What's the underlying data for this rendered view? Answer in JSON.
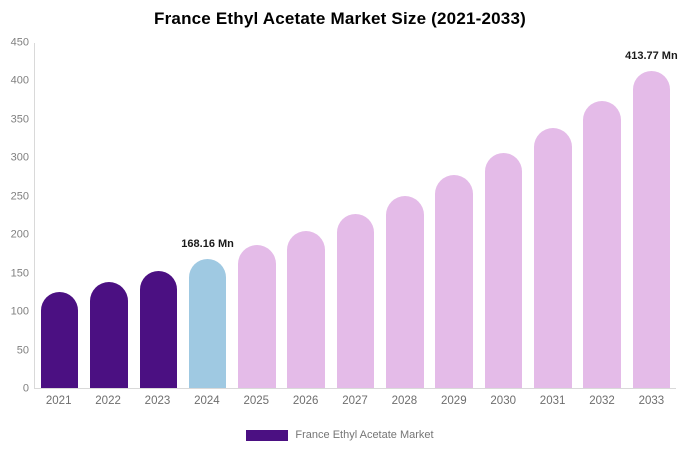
{
  "chart_data": {
    "type": "bar",
    "title": "France Ethyl Acetate Market Size (2021-2033)",
    "categories": [
      "2021",
      "2022",
      "2023",
      "2024",
      "2025",
      "2026",
      "2027",
      "2028",
      "2029",
      "2030",
      "2031",
      "2032",
      "2033"
    ],
    "values": [
      124.6,
      137.7,
      152.2,
      168.16,
      185.9,
      205.4,
      227.0,
      250.9,
      277.3,
      306.5,
      338.7,
      374.4,
      413.77
    ],
    "unit": "Mn",
    "bar_colors": [
      "#4B1082",
      "#4B1082",
      "#4B1082",
      "#9FC9E2",
      "#E4BBE8",
      "#E4BBE8",
      "#E4BBE8",
      "#E4BBE8",
      "#E4BBE8",
      "#E4BBE8",
      "#E4BBE8",
      "#E4BBE8",
      "#E4BBE8"
    ],
    "annotations": [
      {
        "category": "2024",
        "text": "168.16 Mn"
      },
      {
        "category": "2033",
        "text": "413.77 Mn"
      }
    ],
    "xlabel": "",
    "ylabel": "",
    "ylim": [
      0,
      450
    ],
    "y_ticks": [
      0,
      50,
      100,
      150,
      200,
      250,
      300,
      350,
      400,
      450
    ],
    "grid": false,
    "legend": {
      "position": "bottom",
      "entries": [
        {
          "label": "France Ethyl Acetate Market",
          "color": "#4B1082"
        }
      ]
    }
  },
  "colors": {
    "historical_bar": "#4B1082",
    "base_year_bar": "#9FC9E2",
    "forecast_bar": "#E4BBE8",
    "axis_line": "#D9D9D9",
    "tick_text": "#808080",
    "annotation_text": "#1A1A1A",
    "legend_text": "#757575",
    "title_text": "#000000",
    "background": "#FFFFFF"
  }
}
